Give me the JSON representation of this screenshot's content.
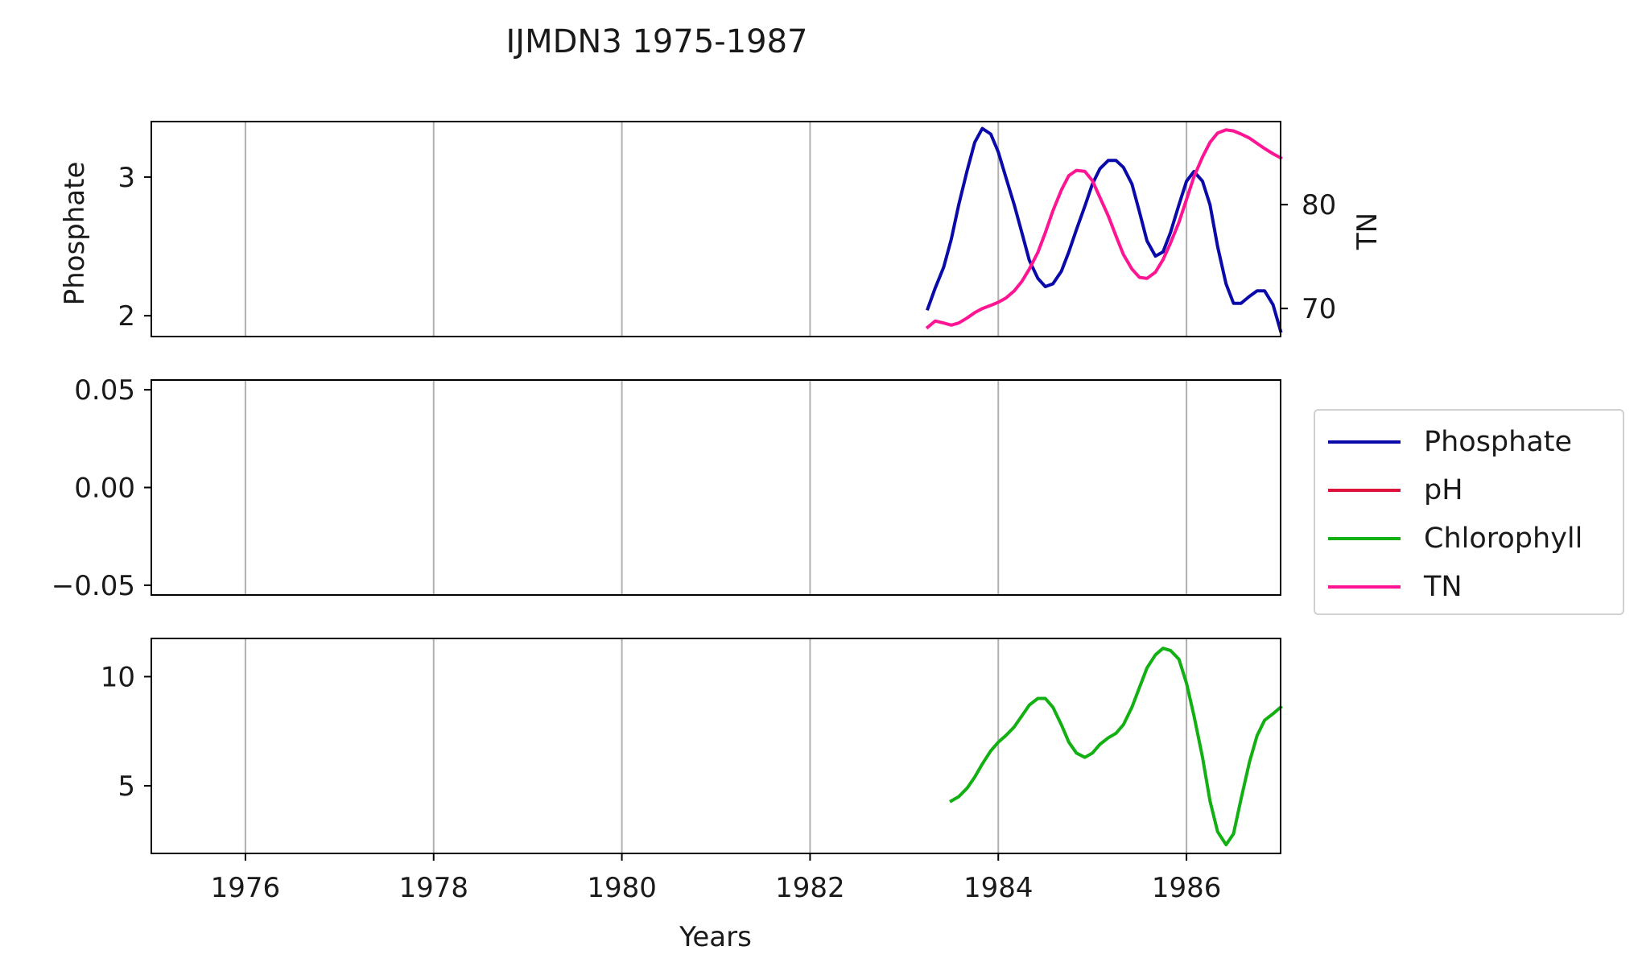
{
  "title": "IJMDN3 1975-1987",
  "xlabel": "Years",
  "colors": {
    "Phosphate": "#0a0aaa",
    "pH": "#dc143c",
    "Chlorophyll": "#12b012",
    "TN": "#ff1493",
    "grid": "#b0b0b0"
  },
  "legend": {
    "placement": "right, outside plots, center-aligned with middle panel",
    "items": [
      {
        "label": "Phosphate"
      },
      {
        "label": "pH"
      },
      {
        "label": "Chlorophyll"
      },
      {
        "label": "TN"
      }
    ]
  },
  "chart_data": [
    {
      "type": "line",
      "panel": "top",
      "xlim": [
        1975.0,
        1987.0
      ],
      "ylabel": "Phosphate",
      "ylim": [
        1.85,
        3.4
      ],
      "yticks": [
        2,
        3
      ],
      "ytick_labels": [
        "2",
        "3"
      ],
      "xgrid": true,
      "series": [
        {
          "name": "Phosphate",
          "axis": "left",
          "x": [
            1983.25,
            1983.33,
            1983.42,
            1983.5,
            1983.58,
            1983.67,
            1983.75,
            1983.83,
            1983.92,
            1984.0,
            1984.08,
            1984.17,
            1984.25,
            1984.33,
            1984.42,
            1984.5,
            1984.58,
            1984.67,
            1984.75,
            1984.83,
            1984.92,
            1985.0,
            1985.08,
            1985.17,
            1985.25,
            1985.33,
            1985.42,
            1985.5,
            1985.58,
            1985.67,
            1985.75,
            1985.83,
            1985.92,
            1986.0,
            1986.08,
            1986.17,
            1986.25,
            1986.33,
            1986.42,
            1986.5,
            1986.58,
            1986.67,
            1986.75,
            1986.83,
            1986.92,
            1987.0
          ],
          "y": [
            2.05,
            2.2,
            2.35,
            2.55,
            2.8,
            3.05,
            3.25,
            3.35,
            3.31,
            3.18,
            3.0,
            2.8,
            2.6,
            2.4,
            2.27,
            2.21,
            2.23,
            2.32,
            2.46,
            2.62,
            2.79,
            2.95,
            3.06,
            3.12,
            3.12,
            3.07,
            2.95,
            2.75,
            2.54,
            2.43,
            2.46,
            2.6,
            2.8,
            2.97,
            3.04,
            2.97,
            2.8,
            2.5,
            2.23,
            2.09,
            2.09,
            2.14,
            2.18,
            2.18,
            2.08,
            1.89
          ]
        },
        {
          "name": "TN",
          "axis": "right",
          "ylabel": "TN",
          "ylim": [
            67.3,
            88.0
          ],
          "yticks": [
            70,
            80
          ],
          "ytick_labels": [
            "70",
            "80"
          ],
          "x": [
            1983.25,
            1983.33,
            1983.42,
            1983.5,
            1983.58,
            1983.67,
            1983.75,
            1983.83,
            1983.92,
            1984.0,
            1984.08,
            1984.17,
            1984.25,
            1984.33,
            1984.42,
            1984.5,
            1984.58,
            1984.67,
            1984.75,
            1984.83,
            1984.92,
            1985.0,
            1985.08,
            1985.17,
            1985.25,
            1985.33,
            1985.42,
            1985.5,
            1985.58,
            1985.67,
            1985.75,
            1985.83,
            1985.92,
            1986.0,
            1986.08,
            1986.17,
            1986.25,
            1986.33,
            1986.42,
            1986.5,
            1986.58,
            1986.67,
            1986.75,
            1986.83,
            1986.92,
            1987.0
          ],
          "y": [
            68.2,
            68.8,
            68.6,
            68.4,
            68.6,
            69.1,
            69.6,
            70.0,
            70.3,
            70.6,
            71.0,
            71.7,
            72.6,
            73.8,
            75.4,
            77.3,
            79.4,
            81.4,
            82.8,
            83.3,
            83.2,
            82.3,
            80.7,
            78.9,
            77.0,
            75.2,
            73.8,
            73.0,
            72.9,
            73.5,
            74.7,
            76.3,
            78.3,
            80.5,
            82.7,
            84.6,
            86.0,
            86.9,
            87.2,
            87.1,
            86.8,
            86.4,
            85.9,
            85.4,
            84.9,
            84.5
          ]
        }
      ]
    },
    {
      "type": "line",
      "panel": "middle",
      "xlim": [
        1975.0,
        1987.0
      ],
      "ylabel": "",
      "ylim": [
        -0.055,
        0.055
      ],
      "yticks": [
        -0.05,
        0.0,
        0.05
      ],
      "ytick_labels": [
        "−0.05",
        "0.00",
        "0.05"
      ],
      "xgrid": true,
      "series": [
        {
          "name": "pH",
          "x": [],
          "y": []
        }
      ]
    },
    {
      "type": "line",
      "panel": "bottom",
      "xlim": [
        1975.0,
        1987.0
      ],
      "ylabel": "",
      "ylim": [
        1.9,
        11.75
      ],
      "yticks": [
        5,
        10
      ],
      "ytick_labels": [
        "5",
        "10"
      ],
      "xgrid": true,
      "xlabel": "Years",
      "xticks": [
        1976,
        1978,
        1980,
        1982,
        1984,
        1986
      ],
      "xtick_labels": [
        "1976",
        "1978",
        "1980",
        "1982",
        "1984",
        "1986"
      ],
      "series": [
        {
          "name": "Chlorophyll",
          "x": [
            1983.5,
            1983.58,
            1983.67,
            1983.75,
            1983.83,
            1983.92,
            1984.0,
            1984.08,
            1984.17,
            1984.25,
            1984.33,
            1984.42,
            1984.5,
            1984.58,
            1984.67,
            1984.75,
            1984.83,
            1984.92,
            1985.0,
            1985.08,
            1985.17,
            1985.25,
            1985.33,
            1985.42,
            1985.5,
            1985.58,
            1985.67,
            1985.75,
            1985.83,
            1985.92,
            1986.0,
            1986.08,
            1986.17,
            1986.25,
            1986.33,
            1986.42,
            1986.5,
            1986.58,
            1986.67,
            1986.75,
            1986.83,
            1986.92,
            1987.0
          ],
          "y": [
            4.3,
            4.5,
            4.9,
            5.4,
            6.0,
            6.6,
            7.0,
            7.3,
            7.7,
            8.2,
            8.7,
            9.0,
            9.0,
            8.6,
            7.8,
            7.0,
            6.5,
            6.3,
            6.5,
            6.9,
            7.2,
            7.4,
            7.8,
            8.6,
            9.5,
            10.4,
            11.0,
            11.3,
            11.2,
            10.8,
            9.7,
            8.2,
            6.3,
            4.3,
            2.9,
            2.3,
            2.8,
            4.4,
            6.1,
            7.3,
            8.0,
            8.3,
            8.6
          ]
        }
      ]
    }
  ]
}
